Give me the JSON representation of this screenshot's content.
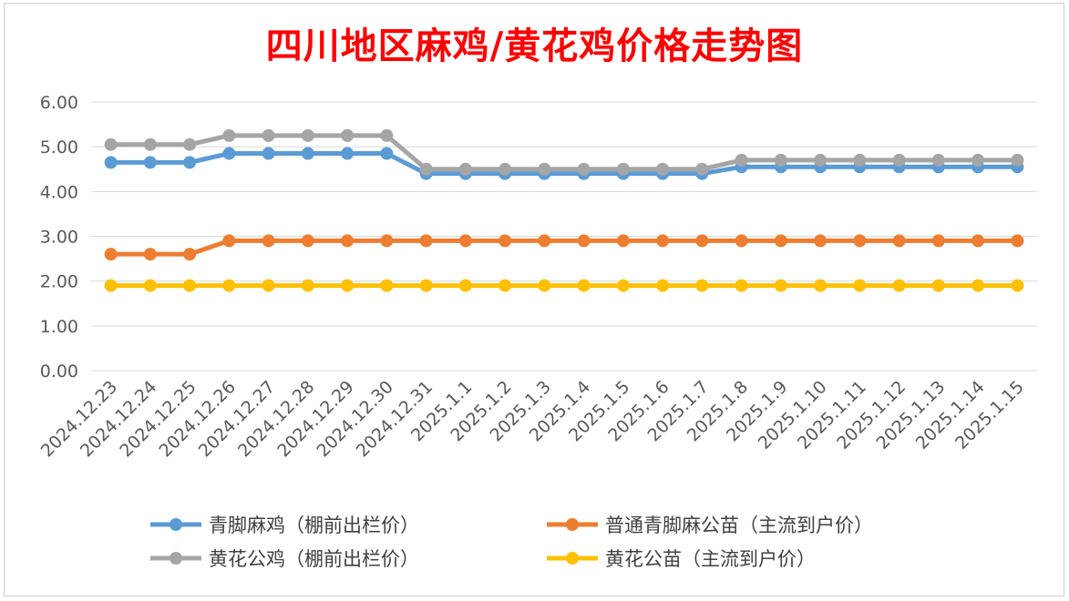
{
  "chart_data": {
    "type": "line",
    "title": "四川地区麻鸡/黄花鸡价格走势图",
    "xlabel": "",
    "ylabel": "",
    "ylim": [
      0,
      6
    ],
    "yticks": [
      "0.00",
      "1.00",
      "2.00",
      "3.00",
      "4.00",
      "5.00",
      "6.00"
    ],
    "grid": true,
    "legend_position": "bottom",
    "categories": [
      "2024.12.23",
      "2024.12.24",
      "2024.12.25",
      "2024.12.26",
      "2024.12.27",
      "2024.12.28",
      "2024.12.29",
      "2024.12.30",
      "2024.12.31",
      "2025.1.1",
      "2025.1.2",
      "2025.1.3",
      "2025.1.4",
      "2025.1.5",
      "2025.1.6",
      "2025.1.7",
      "2025.1.8",
      "2025.1.9",
      "2025.1.10",
      "2025.1.11",
      "2025.1.12",
      "2025.1.13",
      "2025.1.14",
      "2025.1.15"
    ],
    "series": [
      {
        "name": "青脚麻鸡（棚前出栏价）",
        "color": "#5b9bd5",
        "values": [
          4.65,
          4.65,
          4.65,
          4.85,
          4.85,
          4.85,
          4.85,
          4.85,
          4.4,
          4.4,
          4.4,
          4.4,
          4.4,
          4.4,
          4.4,
          4.4,
          4.55,
          4.55,
          4.55,
          4.55,
          4.55,
          4.55,
          4.55,
          4.55
        ]
      },
      {
        "name": "普通青脚麻公苗（主流到户价）",
        "color": "#ed7d31",
        "values": [
          2.6,
          2.6,
          2.6,
          2.9,
          2.9,
          2.9,
          2.9,
          2.9,
          2.9,
          2.9,
          2.9,
          2.9,
          2.9,
          2.9,
          2.9,
          2.9,
          2.9,
          2.9,
          2.9,
          2.9,
          2.9,
          2.9,
          2.9,
          2.9
        ]
      },
      {
        "name": "黄花公鸡（棚前出栏价）",
        "color": "#a5a5a5",
        "values": [
          5.05,
          5.05,
          5.05,
          5.25,
          5.25,
          5.25,
          5.25,
          5.25,
          4.5,
          4.5,
          4.5,
          4.5,
          4.5,
          4.5,
          4.5,
          4.5,
          4.7,
          4.7,
          4.7,
          4.7,
          4.7,
          4.7,
          4.7,
          4.7
        ]
      },
      {
        "name": "黄花公苗（主流到户价）",
        "color": "#ffc000",
        "values": [
          1.9,
          1.9,
          1.9,
          1.9,
          1.9,
          1.9,
          1.9,
          1.9,
          1.9,
          1.9,
          1.9,
          1.9,
          1.9,
          1.9,
          1.9,
          1.9,
          1.9,
          1.9,
          1.9,
          1.9,
          1.9,
          1.9,
          1.9,
          1.9
        ]
      }
    ]
  }
}
